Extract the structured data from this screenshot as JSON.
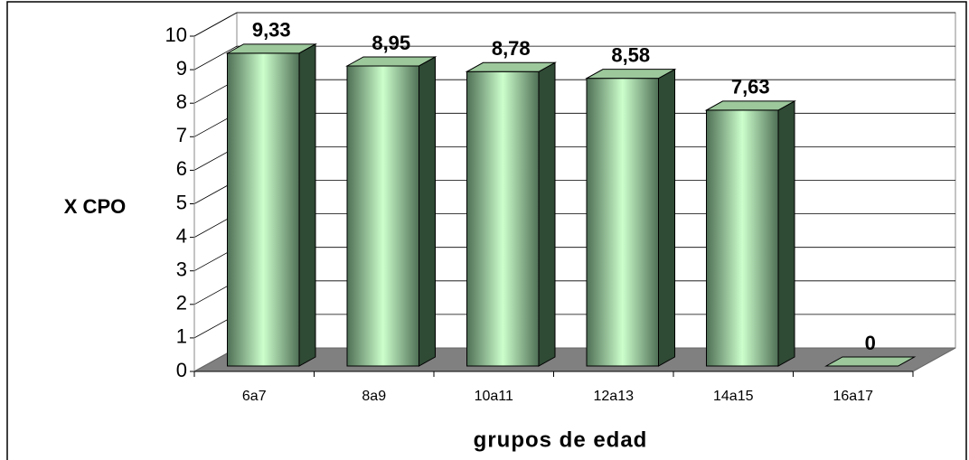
{
  "chart_data": {
    "type": "bar3d",
    "categories": [
      "6a7",
      "8a9",
      "10a11",
      "12a13",
      "14a15",
      "16a17"
    ],
    "values": [
      9.33,
      8.95,
      8.78,
      8.58,
      7.63,
      0
    ],
    "value_labels": [
      "9,33",
      "8,95",
      "8,78",
      "8,58",
      "7,63",
      "0"
    ],
    "color": "#7fa886",
    "ylim": [
      0,
      10
    ],
    "yticks": [
      0,
      1,
      2,
      3,
      4,
      5,
      6,
      7,
      8,
      9,
      10
    ],
    "xlabel": "grupos de edad",
    "ylabel": "X CPO",
    "grid": true
  }
}
